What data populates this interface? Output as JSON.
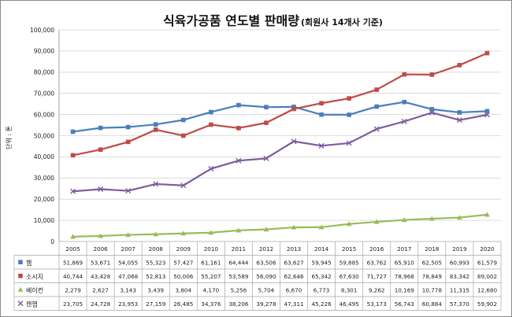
{
  "chart_data": {
    "type": "line",
    "title": "식육가공품 연도별 판매량",
    "subtitle": "(회원사 14개사 기준)",
    "ylabel": "단위 : 톤",
    "ylim": [
      0,
      100000
    ],
    "yticks": [
      "0",
      "10,000",
      "20,000",
      "30,000",
      "40,000",
      "50,000",
      "60,000",
      "70,000",
      "80,000",
      "90,000",
      "100,000"
    ],
    "grid": true,
    "legend_placement": "data table (left column)",
    "categories": [
      "2005",
      "2006",
      "2007",
      "2008",
      "2009",
      "2010",
      "2011",
      "2012",
      "2013",
      "2014",
      "2015",
      "2016",
      "2017",
      "2018",
      "2019",
      "2020"
    ],
    "series": [
      {
        "name": "햄",
        "color": "#4a7ebb",
        "marker": "square",
        "values": [
          51869,
          53671,
          54055,
          55323,
          57427,
          61161,
          64444,
          63506,
          63627,
          59945,
          59885,
          63762,
          65910,
          62505,
          60993,
          61579
        ],
        "labels": [
          "51,869",
          "53,671",
          "54,055",
          "55,323",
          "57,427",
          "61,161",
          "64,444",
          "63,506",
          "63,627",
          "59,945",
          "59,885",
          "63,762",
          "65,910",
          "62,505",
          "60,993",
          "61,579"
        ]
      },
      {
        "name": "소시지",
        "color": "#be4b48",
        "marker": "square",
        "values": [
          40744,
          43428,
          47068,
          52813,
          50006,
          55207,
          53589,
          56090,
          62646,
          65342,
          67630,
          71727,
          78968,
          78849,
          83342,
          89002
        ],
        "labels": [
          "40,744",
          "43,428",
          "47,068",
          "52,813",
          "50,006",
          "55,207",
          "53,589",
          "56,090",
          "62,646",
          "65,342",
          "67,630",
          "71,727",
          "78,968",
          "78,849",
          "83,342",
          "89,002"
        ]
      },
      {
        "name": "베이컨",
        "color": "#9bbb59",
        "marker": "triangle",
        "values": [
          2279,
          2627,
          3143,
          3439,
          3804,
          4170,
          5256,
          5704,
          6670,
          6773,
          8301,
          9262,
          10169,
          10778,
          11315,
          12680
        ],
        "labels": [
          "2,279",
          "2,627",
          "3,143",
          "3,439",
          "3,804",
          "4,170",
          "5,256",
          "5,704",
          "6,670",
          "6,773",
          "8,301",
          "9,262",
          "10,169",
          "10,778",
          "11,315",
          "12,680"
        ]
      },
      {
        "name": "캔햄",
        "color": "#7d5c9e",
        "marker": "x",
        "values": [
          23705,
          24728,
          23953,
          27159,
          26485,
          34376,
          38206,
          39278,
          47311,
          45226,
          46495,
          53173,
          56743,
          60884,
          57370,
          59902
        ],
        "labels": [
          "23,705",
          "24,728",
          "23,953",
          "27,159",
          "26,485",
          "34,376",
          "38,206",
          "39,278",
          "47,311",
          "45,226",
          "46,495",
          "53,173",
          "56,743",
          "60,884",
          "57,370",
          "59,902"
        ]
      }
    ]
  }
}
